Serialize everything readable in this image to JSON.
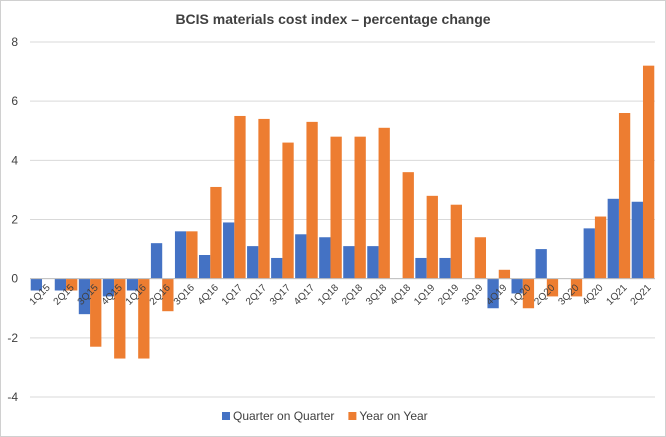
{
  "chart_data": {
    "type": "bar",
    "title": "BCIS materials cost index – percentage change",
    "xlabel": "",
    "ylabel": "",
    "ylim": [
      -4,
      8
    ],
    "yticks": [
      -4,
      -2,
      0,
      2,
      4,
      6,
      8
    ],
    "grid": true,
    "legend_position": "bottom",
    "categories": [
      "1Q15",
      "2Q15",
      "3Q15",
      "4Q15",
      "1Q16",
      "2Q16",
      "3Q16",
      "4Q16",
      "1Q17",
      "2Q17",
      "3Q17",
      "4Q17",
      "1Q18",
      "2Q18",
      "3Q18",
      "4Q18",
      "1Q19",
      "2Q19",
      "3Q19",
      "4Q19",
      "1Q20",
      "2Q20",
      "3Q20",
      "4Q20",
      "1Q21",
      "2Q21"
    ],
    "series": [
      {
        "name": "Quarter on Quarter",
        "color": "#4472C4",
        "values": [
          -0.4,
          -0.4,
          -1.2,
          -0.6,
          -0.4,
          1.2,
          1.6,
          0.8,
          1.9,
          1.1,
          0.7,
          1.5,
          1.4,
          1.1,
          1.1,
          0.0,
          0.7,
          0.7,
          0.0,
          -1.0,
          -0.5,
          1.0,
          0.0,
          1.7,
          2.7,
          2.6
        ]
      },
      {
        "name": "Year on Year",
        "color": "#ED7D31",
        "values": [
          0.0,
          -0.4,
          -2.3,
          -2.7,
          -2.7,
          -1.1,
          1.6,
          3.1,
          5.5,
          5.4,
          4.6,
          5.3,
          4.8,
          4.8,
          5.1,
          3.6,
          2.8,
          2.5,
          1.4,
          0.3,
          -1.0,
          -0.6,
          -0.6,
          2.1,
          5.6,
          7.2
        ]
      }
    ]
  }
}
